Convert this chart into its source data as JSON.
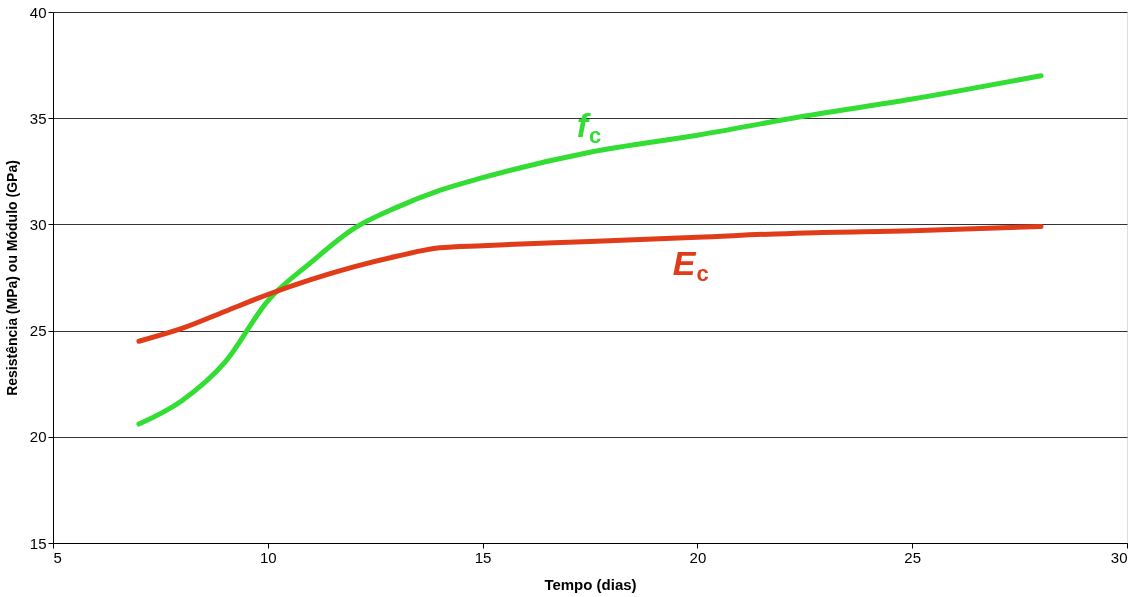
{
  "chart_data": {
    "type": "line",
    "xlabel": "Tempo (dias)",
    "ylabel": "Resistência (MPa) ou Módulo (GPa)",
    "x": [
      7,
      8,
      9,
      10,
      11,
      12,
      13,
      14,
      15,
      17.5,
      20,
      22.5,
      25,
      28
    ],
    "series": [
      {
        "name": "f$_{c}$",
        "color": "#33dd33",
        "values": [
          20.6,
          21.7,
          23.5,
          26.4,
          28.2,
          29.8,
          30.8,
          31.6,
          32.2,
          33.4,
          34.2,
          35.1,
          35.9,
          37.0
        ]
      },
      {
        "name": "E$_{c}$",
        "color": "#e03c1a",
        "values": [
          24.5,
          25.1,
          25.9,
          26.7,
          27.4,
          28.0,
          28.5,
          28.9,
          29.0,
          29.2,
          29.4,
          29.6,
          29.7,
          29.9
        ]
      }
    ],
    "xlim": [
      5,
      30
    ],
    "xticks": [
      5,
      10,
      15,
      20,
      25,
      30
    ],
    "ylim": [
      15,
      40
    ],
    "yticks": [
      15,
      20,
      25,
      30,
      35,
      40
    ],
    "grid": "y",
    "legend": false,
    "marker": "none",
    "line_style": "solid"
  }
}
